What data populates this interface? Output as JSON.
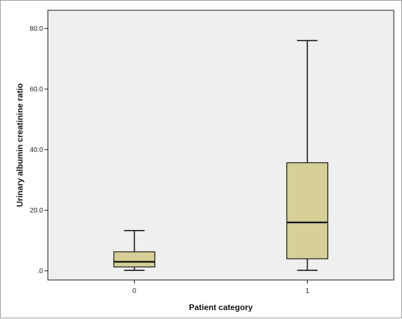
{
  "chart_data": {
    "type": "boxplot",
    "xlabel": "Patient category",
    "ylabel": "Urinary albumin creatinine ratio",
    "ylim": [
      -3,
      86
    ],
    "yticks": [
      0,
      20,
      40,
      60,
      80
    ],
    "ytick_labels": [
      ".0",
      "20.0",
      "40.0",
      "60.0",
      "80.0"
    ],
    "categories": [
      "0",
      "1"
    ],
    "boxes": [
      {
        "category": "0",
        "min": 0.2,
        "q1": 1.3,
        "median": 3.0,
        "q3": 6.3,
        "max": 13.3
      },
      {
        "category": "1",
        "min": 0.2,
        "q1": 4.0,
        "median": 16.0,
        "q3": 35.7,
        "max": 76.0
      }
    ],
    "grid": false,
    "colors": {
      "plot_background": "#efefef",
      "box_fill": "#d6cf96",
      "line": "#111111"
    }
  }
}
